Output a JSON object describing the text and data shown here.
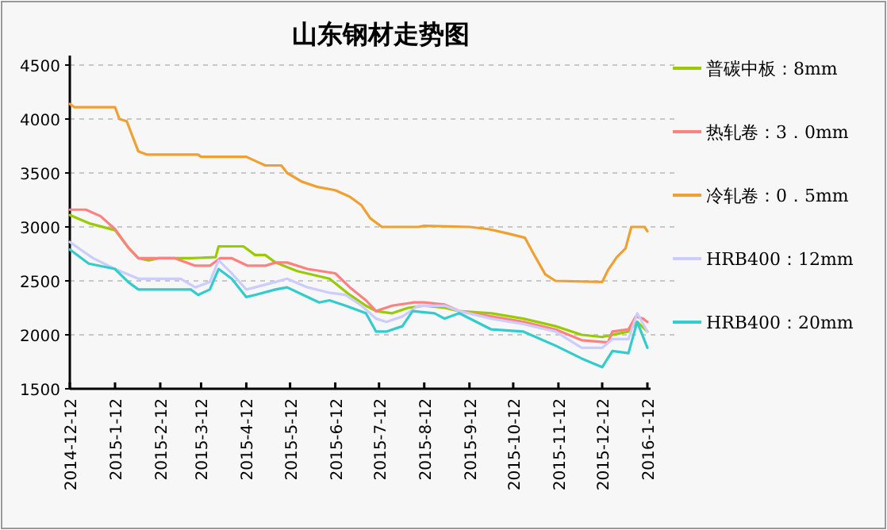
{
  "chart_data": {
    "type": "line",
    "title": "山东钢材走势图",
    "xlim": [
      "2014-12-12",
      "2016-01-12"
    ],
    "xticks": [
      {
        "value": "2014-12-12",
        "label": "2014-12-12"
      },
      {
        "value": "2015-01-12",
        "label": "2015-1-12"
      },
      {
        "value": "2015-02-12",
        "label": "2015-2-12"
      },
      {
        "value": "2015-03-12",
        "label": "2015-3-12"
      },
      {
        "value": "2015-04-12",
        "label": "2015-4-12"
      },
      {
        "value": "2015-05-12",
        "label": "2015-5-12"
      },
      {
        "value": "2015-06-12",
        "label": "2015-6-12"
      },
      {
        "value": "2015-07-12",
        "label": "2015-7-12"
      },
      {
        "value": "2015-08-12",
        "label": "2015-8-12"
      },
      {
        "value": "2015-09-12",
        "label": "2015-9-12"
      },
      {
        "value": "2015-10-12",
        "label": "2015-10-12"
      },
      {
        "value": "2015-11-12",
        "label": "2015-11-12"
      },
      {
        "value": "2015-12-12",
        "label": "2015-12-12"
      },
      {
        "value": "2016-01-12",
        "label": "2016-1-12"
      }
    ],
    "ylim": [
      1500,
      4500
    ],
    "yticks": [
      1500,
      2000,
      2500,
      3000,
      3500,
      4000,
      4500
    ],
    "grid": "y",
    "legend": "right",
    "marker": "none",
    "line_style": "solid",
    "series": [
      {
        "name": "普碳中板：8mm",
        "color": "#99cc00",
        "x": [
          "2014-12-12",
          "2014-12-26",
          "2015-01-12",
          "2015-01-21",
          "2015-01-28",
          "2015-02-04",
          "2015-02-11",
          "2015-03-05",
          "2015-03-22",
          "2015-03-24",
          "2015-04-10",
          "2015-04-18",
          "2015-04-25",
          "2015-05-02",
          "2015-05-17",
          "2015-06-08",
          "2015-06-22",
          "2015-07-03",
          "2015-07-10",
          "2015-07-21",
          "2015-08-01",
          "2015-08-12",
          "2015-08-26",
          "2015-09-05",
          "2015-09-27",
          "2015-10-19",
          "2015-11-10",
          "2015-11-28",
          "2015-12-12",
          "2015-12-30",
          "2016-01-05",
          "2016-01-12"
        ],
        "values": [
          3110,
          3030,
          2970,
          2810,
          2710,
          2690,
          2710,
          2710,
          2720,
          2820,
          2820,
          2740,
          2740,
          2670,
          2590,
          2520,
          2370,
          2270,
          2220,
          2200,
          2250,
          2270,
          2250,
          2220,
          2200,
          2150,
          2080,
          2000,
          1980,
          2030,
          2120,
          2030
        ]
      },
      {
        "name": "热轧卷：3．0mm",
        "color": "#ff8080",
        "x": [
          "2014-12-12",
          "2014-12-23",
          "2015-01-02",
          "2015-01-12",
          "2015-01-21",
          "2015-01-28",
          "2015-02-11",
          "2015-02-22",
          "2015-03-08",
          "2015-03-18",
          "2015-03-25",
          "2015-04-02",
          "2015-04-13",
          "2015-04-25",
          "2015-05-02",
          "2015-05-10",
          "2015-05-24",
          "2015-06-12",
          "2015-06-22",
          "2015-07-03",
          "2015-07-10",
          "2015-07-21",
          "2015-08-05",
          "2015-08-12",
          "2015-08-26",
          "2015-09-05",
          "2015-09-27",
          "2015-10-19",
          "2015-11-10",
          "2015-11-28",
          "2015-12-16",
          "2015-12-19",
          "2015-12-30",
          "2016-01-04",
          "2016-01-09",
          "2016-01-12"
        ],
        "values": [
          3160,
          3160,
          3100,
          2980,
          2810,
          2710,
          2710,
          2710,
          2640,
          2640,
          2710,
          2710,
          2640,
          2640,
          2670,
          2670,
          2610,
          2570,
          2440,
          2320,
          2220,
          2270,
          2300,
          2300,
          2280,
          2220,
          2170,
          2120,
          2050,
          1950,
          1930,
          2030,
          2050,
          2170,
          2150,
          2120
        ]
      },
      {
        "name": "冷轧卷：0．5mm",
        "color": "#f0a030",
        "x": [
          "2014-12-12",
          "2014-12-15",
          "2015-01-12",
          "2015-01-15",
          "2015-01-20",
          "2015-01-28",
          "2015-02-03",
          "2015-03-10",
          "2015-03-12",
          "2015-04-12",
          "2015-04-20",
          "2015-04-25",
          "2015-05-06",
          "2015-05-10",
          "2015-05-20",
          "2015-05-31",
          "2015-06-12",
          "2015-06-22",
          "2015-06-30",
          "2015-07-06",
          "2015-07-14",
          "2015-08-08",
          "2015-08-12",
          "2015-09-12",
          "2015-09-25",
          "2015-10-08",
          "2015-10-20",
          "2015-10-26",
          "2015-11-03",
          "2015-11-10",
          "2015-12-12",
          "2015-12-16",
          "2015-12-22",
          "2015-12-28",
          "2016-01-01",
          "2016-01-10",
          "2016-01-12"
        ],
        "values": [
          4140,
          4110,
          4110,
          4000,
          3980,
          3700,
          3670,
          3670,
          3650,
          3650,
          3600,
          3570,
          3570,
          3500,
          3420,
          3370,
          3340,
          3280,
          3200,
          3080,
          3000,
          3000,
          3010,
          3000,
          2980,
          2940,
          2900,
          2750,
          2560,
          2500,
          2490,
          2600,
          2720,
          2800,
          3000,
          3000,
          2960
        ]
      },
      {
        "name": "HRB400：12mm",
        "color": "#ccccff",
        "x": [
          "2014-12-12",
          "2014-12-28",
          "2015-01-12",
          "2015-01-28",
          "2015-02-11",
          "2015-02-26",
          "2015-03-08",
          "2015-03-18",
          "2015-03-24",
          "2015-04-02",
          "2015-04-12",
          "2015-04-18",
          "2015-05-02",
          "2015-05-10",
          "2015-05-24",
          "2015-06-08",
          "2015-06-19",
          "2015-06-30",
          "2015-07-10",
          "2015-07-17",
          "2015-07-28",
          "2015-08-08",
          "2015-08-26",
          "2015-09-05",
          "2015-09-27",
          "2015-10-19",
          "2015-11-10",
          "2015-11-28",
          "2015-12-12",
          "2015-12-19",
          "2015-12-30",
          "2016-01-05",
          "2016-01-12"
        ],
        "values": [
          2860,
          2710,
          2610,
          2520,
          2520,
          2520,
          2440,
          2490,
          2690,
          2570,
          2420,
          2440,
          2490,
          2520,
          2440,
          2390,
          2370,
          2270,
          2150,
          2120,
          2170,
          2270,
          2270,
          2220,
          2150,
          2100,
          2030,
          1880,
          1880,
          1960,
          1960,
          2200,
          2030
        ]
      },
      {
        "name": "HRB400：20mm",
        "color": "#33cccc",
        "x": [
          "2014-12-12",
          "2014-12-25",
          "2015-01-12",
          "2015-01-21",
          "2015-01-28",
          "2015-02-11",
          "2015-03-05",
          "2015-03-10",
          "2015-03-18",
          "2015-03-24",
          "2015-04-02",
          "2015-04-12",
          "2015-04-18",
          "2015-05-02",
          "2015-05-10",
          "2015-05-21",
          "2015-06-01",
          "2015-06-08",
          "2015-06-19",
          "2015-07-03",
          "2015-07-10",
          "2015-07-17",
          "2015-07-28",
          "2015-08-04",
          "2015-08-19",
          "2015-08-26",
          "2015-09-05",
          "2015-09-27",
          "2015-10-19",
          "2015-11-10",
          "2015-11-28",
          "2015-12-12",
          "2015-12-19",
          "2015-12-30",
          "2016-01-05",
          "2016-01-12"
        ],
        "values": [
          2790,
          2660,
          2610,
          2490,
          2420,
          2420,
          2420,
          2370,
          2420,
          2610,
          2520,
          2350,
          2370,
          2420,
          2440,
          2370,
          2300,
          2320,
          2270,
          2200,
          2030,
          2030,
          2080,
          2220,
          2200,
          2150,
          2200,
          2050,
          2030,
          1900,
          1780,
          1700,
          1850,
          1830,
          2120,
          1880
        ]
      }
    ]
  }
}
